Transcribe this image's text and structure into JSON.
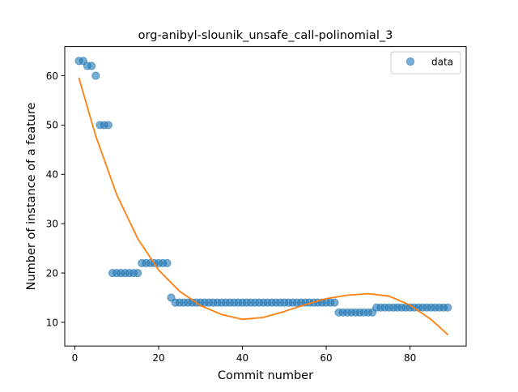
{
  "chart_data": {
    "type": "scatter",
    "title": "org-anibyl-slounik_unsafe_call-polinomial_3",
    "xlabel": "Commit number",
    "ylabel": "Number of instance of a feature",
    "xlim": [
      -2.4,
      93.4
    ],
    "ylim": [
      5.2,
      65.9
    ],
    "xticks": [
      0,
      20,
      40,
      60,
      80
    ],
    "yticks": [
      10,
      20,
      30,
      40,
      50,
      60
    ],
    "grid": false,
    "legend": {
      "position": "top-right",
      "entries": [
        "data"
      ]
    },
    "series": [
      {
        "name": "data",
        "kind": "scatter",
        "color": "#1f77b4",
        "alpha": 0.6,
        "x": [
          1,
          2,
          3,
          4,
          5,
          6,
          7,
          8,
          9,
          10,
          11,
          12,
          13,
          14,
          15,
          16,
          17,
          18,
          19,
          20,
          21,
          22,
          23,
          24,
          25,
          26,
          27,
          28,
          29,
          30,
          31,
          32,
          33,
          34,
          35,
          36,
          37,
          38,
          39,
          40,
          41,
          42,
          43,
          44,
          45,
          46,
          47,
          48,
          49,
          50,
          51,
          52,
          53,
          54,
          55,
          56,
          57,
          58,
          59,
          60,
          61,
          62,
          63,
          64,
          65,
          66,
          67,
          68,
          69,
          70,
          71,
          72,
          73,
          74,
          75,
          76,
          77,
          78,
          79,
          80,
          81,
          82,
          83,
          84,
          85,
          86,
          87,
          88,
          89
        ],
        "y": [
          63,
          63,
          62,
          62,
          60,
          50,
          50,
          50,
          20,
          20,
          20,
          20,
          20,
          20,
          20,
          22,
          22,
          22,
          22,
          22,
          22,
          22,
          15,
          14,
          14,
          14,
          14,
          14,
          14,
          14,
          14,
          14,
          14,
          14,
          14,
          14,
          14,
          14,
          14,
          14,
          14,
          14,
          14,
          14,
          14,
          14,
          14,
          14,
          14,
          14,
          14,
          14,
          14,
          14,
          14,
          14,
          14,
          14,
          14,
          14,
          14,
          14,
          12,
          12,
          12,
          12,
          12,
          12,
          12,
          12,
          12,
          13,
          13,
          13,
          13,
          13,
          13,
          13,
          13,
          13,
          13,
          13,
          13,
          13,
          13,
          13,
          13,
          13,
          13
        ]
      },
      {
        "kind": "line",
        "color": "#ff7f0e",
        "x": [
          1,
          5,
          10,
          15,
          20,
          25,
          30,
          35,
          40,
          45,
          50,
          55,
          60,
          65,
          70,
          75,
          80,
          85,
          89
        ],
        "y": [
          59.5,
          47.8,
          35.9,
          27.0,
          20.6,
          16.3,
          13.4,
          11.6,
          10.6,
          11.0,
          12.2,
          13.6,
          14.8,
          15.5,
          15.8,
          15.3,
          13.5,
          10.6,
          7.5
        ]
      }
    ]
  }
}
